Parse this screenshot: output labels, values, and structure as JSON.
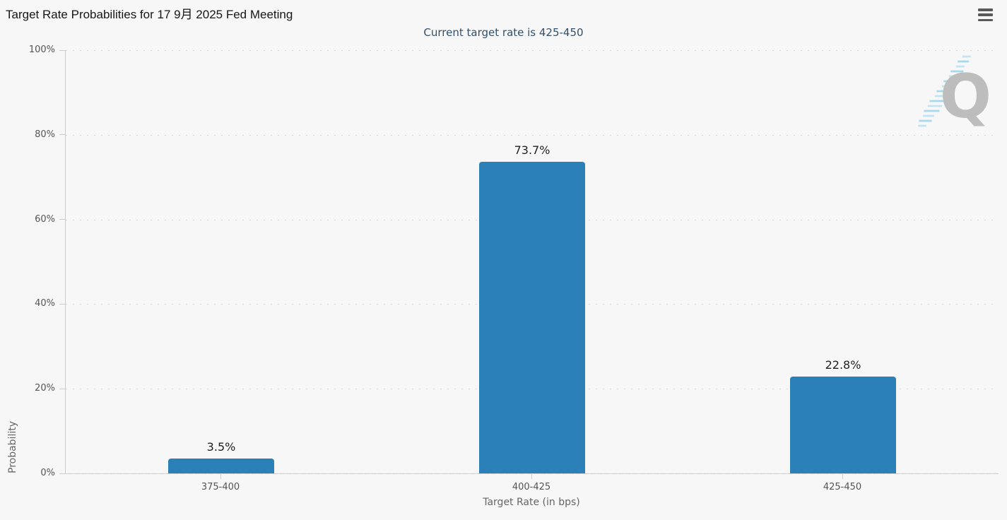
{
  "header": {
    "title": "Target Rate Probabilities for 17 9月 2025 Fed Meeting"
  },
  "subtitle": "Current target rate is 425-450",
  "menu": {
    "icon": "hamburger"
  },
  "watermark": {
    "letter": "Q"
  },
  "colors": {
    "background": "#f7f7f7",
    "bar": "#2b80b8",
    "title_text": "#161616",
    "subtitle_text": "#33506b",
    "tick_label": "#555555",
    "axis_title": "#666666",
    "data_label": "#1f1f1f",
    "grid": "#d8d8d8",
    "axis_line": "#cccccc",
    "watermark_letter": "#bdbdbd",
    "watermark_stripes": "#9fd6ec",
    "menu_icon": "#5a5a5a"
  },
  "chart_data": {
    "type": "bar",
    "title": "Target Rate Probabilities for 17 9月 2025 Fed Meeting",
    "subtitle": "Current target rate is 425-450",
    "categories": [
      "375-400",
      "400-425",
      "425-450"
    ],
    "values": [
      3.5,
      73.7,
      22.8
    ],
    "data_labels": [
      "3.5%",
      "73.7%",
      "22.8%"
    ],
    "xlabel": "Target Rate (in bps)",
    "ylabel": "Probability",
    "ylim": [
      0,
      100
    ],
    "yticks": [
      {
        "value": 0,
        "label": "0%"
      },
      {
        "value": 20,
        "label": "20%"
      },
      {
        "value": 40,
        "label": "40%"
      },
      {
        "value": 60,
        "label": "60%"
      },
      {
        "value": 80,
        "label": "80%"
      },
      {
        "value": 100,
        "label": "100%"
      }
    ],
    "grid": "dotted-horizontal",
    "legend": "none"
  }
}
